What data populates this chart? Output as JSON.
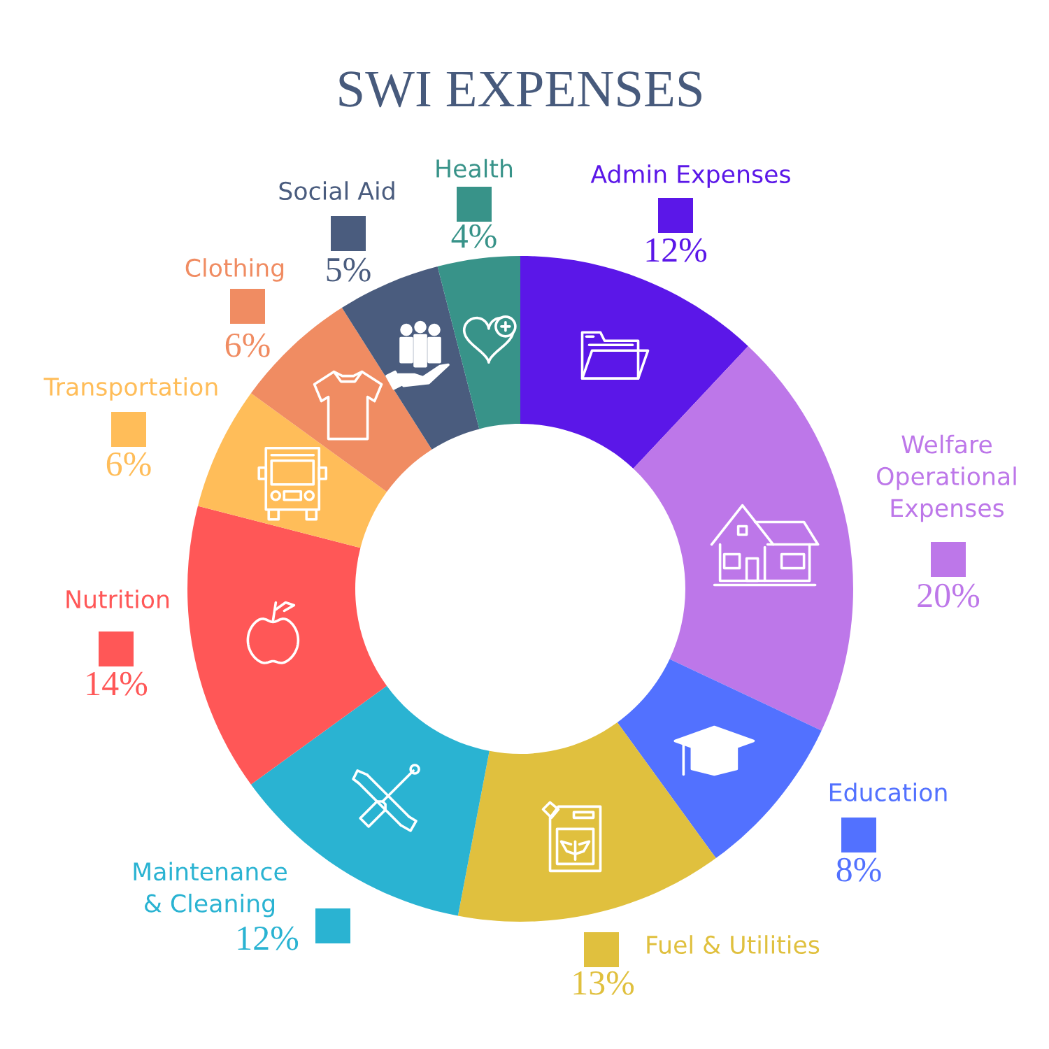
{
  "chart_data": {
    "type": "donut",
    "title": "SWI EXPENSES",
    "categories": [
      "Admin Expenses",
      "Welfare Operational Expenses",
      "Education",
      "Fuel & Utilities",
      "Maintenance & Cleaning",
      "Nutrition",
      "Transportation",
      "Clothing",
      "Social Aid",
      "Health"
    ],
    "values": [
      12,
      20,
      8,
      13,
      12,
      14,
      6,
      6,
      5,
      4
    ],
    "colors": [
      "#5b17e8",
      "#bd77e9",
      "#5271ff",
      "#e0c03e",
      "#2ab3d2",
      "#ff5757",
      "#ffbd59",
      "#f08c62",
      "#4a5c7e",
      "#389389"
    ],
    "value_labels": [
      "12%",
      "20%",
      "8%",
      "13%",
      "12%",
      "14%",
      "6%",
      "6%",
      "5%",
      "4%"
    ]
  }
}
